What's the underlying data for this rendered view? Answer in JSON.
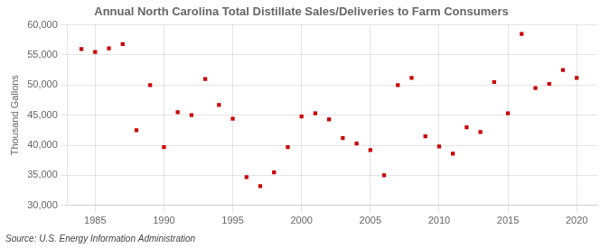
{
  "chart_data": {
    "type": "scatter",
    "title": "Annual North Carolina Total Distillate Sales/Deliveries to Farm Consumers",
    "y_label": "Thousand Gallons",
    "annotations": [
      "Source: U.S. Energy Information Administration"
    ],
    "x": [
      1984,
      1985,
      1986,
      1987,
      1988,
      1989,
      1990,
      1991,
      1992,
      1993,
      1994,
      1995,
      1996,
      1997,
      1998,
      1999,
      2000,
      2001,
      2002,
      2003,
      2004,
      2005,
      2006,
      2007,
      2008,
      2009,
      2010,
      2011,
      2012,
      2013,
      2014,
      2015,
      2016,
      2017,
      2018,
      2019,
      2020
    ],
    "values": [
      56000,
      55500,
      56100,
      56800,
      42500,
      50000,
      39700,
      45500,
      45000,
      51000,
      46700,
      44400,
      34700,
      33200,
      35500,
      39700,
      44800,
      45300,
      44300,
      41200,
      40300,
      39200,
      35000,
      50000,
      51200,
      41500,
      39800,
      38600,
      43000,
      42200,
      50500,
      45300,
      58500,
      49500,
      50200,
      52500,
      51200
    ],
    "color": "#cc0000",
    "marker": "square",
    "xlim": [
      1983.0,
      2021.5
    ],
    "xticks": [
      1985,
      1990,
      1995,
      2000,
      2005,
      2010,
      2015,
      2020
    ],
    "ylim": [
      30000,
      60000
    ],
    "yticks": [
      {
        "value": 30000,
        "label": "30,000"
      },
      {
        "value": 35000,
        "label": "35,000"
      },
      {
        "value": 40000,
        "label": "40,000"
      },
      {
        "value": 45000,
        "label": "45,000"
      },
      {
        "value": 50000,
        "label": "50,000"
      },
      {
        "value": 55000,
        "label": "55,000"
      },
      {
        "value": 60000,
        "label": "60,000"
      }
    ],
    "grid": true
  }
}
